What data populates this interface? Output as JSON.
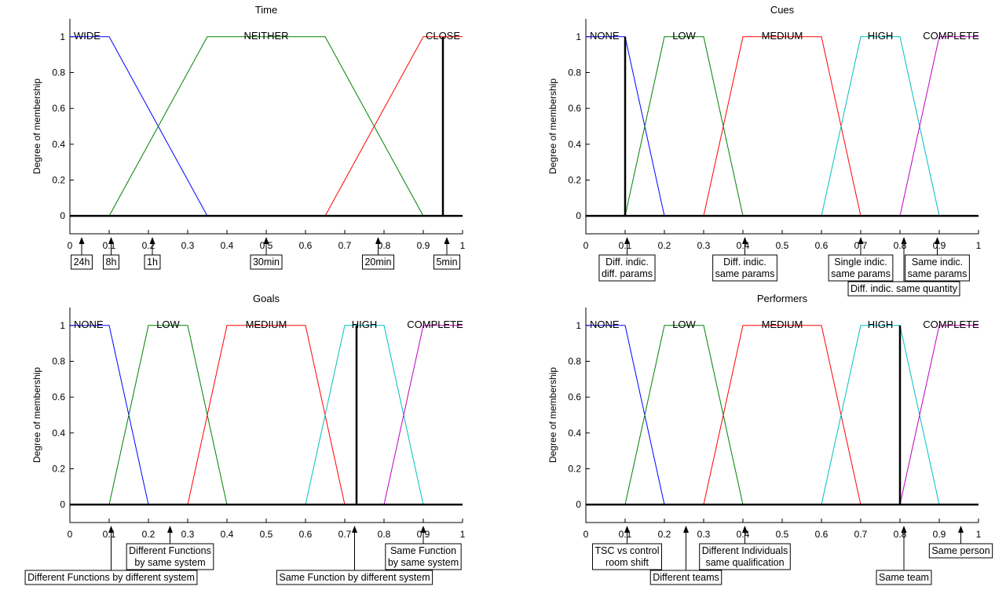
{
  "colors": {
    "blue": "#0000ff",
    "green": "#008000",
    "red": "#ff0000",
    "cyan": "#00bfbf",
    "magenta": "#bf00bf",
    "black": "#000000"
  },
  "chart_data": [
    {
      "type": "line",
      "title": "Time",
      "xlabel": "",
      "ylabel": "Degree of membership",
      "xlim": [
        0,
        1
      ],
      "ylim": [
        -0.1,
        1.1
      ],
      "xticks": [
        "0",
        "0.1",
        "0.2",
        "0.3",
        "0.4",
        "0.5",
        "0.6",
        "0.7",
        "0.8",
        "0.9",
        "1"
      ],
      "yticks": [
        "0",
        "0.2",
        "0.4",
        "0.6",
        "0.8",
        "1"
      ],
      "grid": false,
      "series": [
        {
          "name": "WIDE",
          "color": "blue",
          "x": [
            0,
            0.1,
            0.35
          ],
          "y": [
            1,
            1,
            0
          ]
        },
        {
          "name": "NEITHER",
          "color": "green",
          "x": [
            0.1,
            0.35,
            0.65,
            0.9
          ],
          "y": [
            0,
            1,
            1,
            0
          ]
        },
        {
          "name": "CLOSE",
          "color": "red",
          "x": [
            0.65,
            0.9,
            1
          ],
          "y": [
            0,
            1,
            1
          ]
        }
      ],
      "label_x": [
        0.01,
        0.5,
        0.95
      ],
      "marker": 0.95,
      "annotations": [
        {
          "text": [
            "24h"
          ],
          "x": 0.03,
          "level": 0
        },
        {
          "text": [
            "8h"
          ],
          "x": 0.105,
          "level": 0
        },
        {
          "text": [
            "1h"
          ],
          "x": 0.21,
          "level": 0
        },
        {
          "text": [
            "30min"
          ],
          "x": 0.5,
          "level": 0
        },
        {
          "text": [
            "20min"
          ],
          "x": 0.785,
          "level": 0
        },
        {
          "text": [
            "5min"
          ],
          "x": 0.96,
          "level": 0
        }
      ]
    },
    {
      "type": "line",
      "title": "Cues",
      "xlabel": "",
      "ylabel": "Degree of membership",
      "xlim": [
        0,
        1
      ],
      "ylim": [
        -0.1,
        1.1
      ],
      "xticks": [
        "0",
        "0.1",
        "0.2",
        "0.3",
        "0.4",
        "0.5",
        "0.6",
        "0.7",
        "0.8",
        "0.9",
        "1"
      ],
      "yticks": [
        "0",
        "0.2",
        "0.4",
        "0.6",
        "0.8",
        "1"
      ],
      "grid": false,
      "series": [
        {
          "name": "NONE",
          "color": "blue",
          "x": [
            0,
            0.1,
            0.2
          ],
          "y": [
            1,
            1,
            0
          ]
        },
        {
          "name": "LOW",
          "color": "green",
          "x": [
            0.1,
            0.2,
            0.3,
            0.4
          ],
          "y": [
            0,
            1,
            1,
            0
          ]
        },
        {
          "name": "MEDIUM",
          "color": "red",
          "x": [
            0.3,
            0.4,
            0.6,
            0.7
          ],
          "y": [
            0,
            1,
            1,
            0
          ]
        },
        {
          "name": "HIGH",
          "color": "cyan",
          "x": [
            0.6,
            0.7,
            0.8,
            0.9
          ],
          "y": [
            0,
            1,
            1,
            0
          ]
        },
        {
          "name": "COMPLETE",
          "color": "magenta",
          "x": [
            0.8,
            0.9,
            1
          ],
          "y": [
            0,
            1,
            1
          ]
        }
      ],
      "label_x": [
        0.01,
        0.25,
        0.5,
        0.75,
        0.93
      ],
      "marker": 0.1,
      "annotations": [
        {
          "text": [
            "Diff. indic.",
            "diff. params"
          ],
          "x": 0.105,
          "level": 0
        },
        {
          "text": [
            "Diff. indic.",
            "same params"
          ],
          "x": 0.405,
          "level": 0
        },
        {
          "text": [
            "Single indic.",
            "same params"
          ],
          "x": 0.7,
          "level": 0
        },
        {
          "text": [
            "Diff. indic. same quantity"
          ],
          "x": 0.81,
          "level": 1
        },
        {
          "text": [
            "Same indic.",
            "same params"
          ],
          "x": 0.895,
          "level": 0
        }
      ]
    },
    {
      "type": "line",
      "title": "Goals",
      "xlabel": "",
      "ylabel": "Degree of membership",
      "xlim": [
        0,
        1
      ],
      "ylim": [
        -0.1,
        1.1
      ],
      "xticks": [
        "0",
        "0.1",
        "0.2",
        "0.3",
        "0.4",
        "0.5",
        "0.6",
        "0.7",
        "0.8",
        "0.9",
        "1"
      ],
      "yticks": [
        "0",
        "0.2",
        "0.4",
        "0.6",
        "0.8",
        "1"
      ],
      "grid": false,
      "series": [
        {
          "name": "NONE",
          "color": "blue",
          "x": [
            0,
            0.1,
            0.2
          ],
          "y": [
            1,
            1,
            0
          ]
        },
        {
          "name": "LOW",
          "color": "green",
          "x": [
            0.1,
            0.2,
            0.3,
            0.4
          ],
          "y": [
            0,
            1,
            1,
            0
          ]
        },
        {
          "name": "MEDIUM",
          "color": "red",
          "x": [
            0.3,
            0.4,
            0.6,
            0.7
          ],
          "y": [
            0,
            1,
            1,
            0
          ]
        },
        {
          "name": "HIGH",
          "color": "cyan",
          "x": [
            0.6,
            0.7,
            0.8,
            0.9
          ],
          "y": [
            0,
            1,
            1,
            0
          ]
        },
        {
          "name": "COMPLETE",
          "color": "magenta",
          "x": [
            0.8,
            0.9,
            1
          ],
          "y": [
            0,
            1,
            1
          ]
        }
      ],
      "label_x": [
        0.01,
        0.25,
        0.5,
        0.75,
        0.93
      ],
      "marker": 0.73,
      "annotations": [
        {
          "text": [
            "Different Functions by different system"
          ],
          "x": 0.105,
          "level": 1
        },
        {
          "text": [
            "Different Functions",
            "by same system"
          ],
          "x": 0.255,
          "level": 0
        },
        {
          "text": [
            "Same Function by different system"
          ],
          "x": 0.725,
          "level": 1
        },
        {
          "text": [
            "Same Function",
            "by same system"
          ],
          "x": 0.9,
          "level": 0
        }
      ]
    },
    {
      "type": "line",
      "title": "Performers",
      "xlabel": "",
      "ylabel": "Degree of membership",
      "xlim": [
        0,
        1
      ],
      "ylim": [
        -0.1,
        1.1
      ],
      "xticks": [
        "0",
        "0.1",
        "0.2",
        "0.3",
        "0.4",
        "0.5",
        "0.6",
        "0.7",
        "0.8",
        "0.9",
        "1"
      ],
      "yticks": [
        "0",
        "0.2",
        "0.4",
        "0.6",
        "0.8",
        "1"
      ],
      "grid": false,
      "series": [
        {
          "name": "NONE",
          "color": "blue",
          "x": [
            0,
            0.1,
            0.2
          ],
          "y": [
            1,
            1,
            0
          ]
        },
        {
          "name": "LOW",
          "color": "green",
          "x": [
            0.1,
            0.2,
            0.3,
            0.4
          ],
          "y": [
            0,
            1,
            1,
            0
          ]
        },
        {
          "name": "MEDIUM",
          "color": "red",
          "x": [
            0.3,
            0.4,
            0.6,
            0.7
          ],
          "y": [
            0,
            1,
            1,
            0
          ]
        },
        {
          "name": "HIGH",
          "color": "cyan",
          "x": [
            0.6,
            0.7,
            0.8,
            0.9
          ],
          "y": [
            0,
            1,
            1,
            0
          ]
        },
        {
          "name": "COMPLETE",
          "color": "magenta",
          "x": [
            0.8,
            0.9,
            1
          ],
          "y": [
            0,
            1,
            1
          ]
        }
      ],
      "label_x": [
        0.01,
        0.25,
        0.5,
        0.75,
        0.93
      ],
      "marker": 0.8,
      "annotations": [
        {
          "text": [
            "TSC vs control",
            "room shift"
          ],
          "x": 0.105,
          "level": 0
        },
        {
          "text": [
            "Different teams"
          ],
          "x": 0.255,
          "level": 1
        },
        {
          "text": [
            "Different Individuals",
            "same qualification"
          ],
          "x": 0.405,
          "level": 0
        },
        {
          "text": [
            "Same team"
          ],
          "x": 0.81,
          "level": 1
        },
        {
          "text": [
            "Same person"
          ],
          "x": 0.955,
          "level": 0
        }
      ]
    }
  ]
}
